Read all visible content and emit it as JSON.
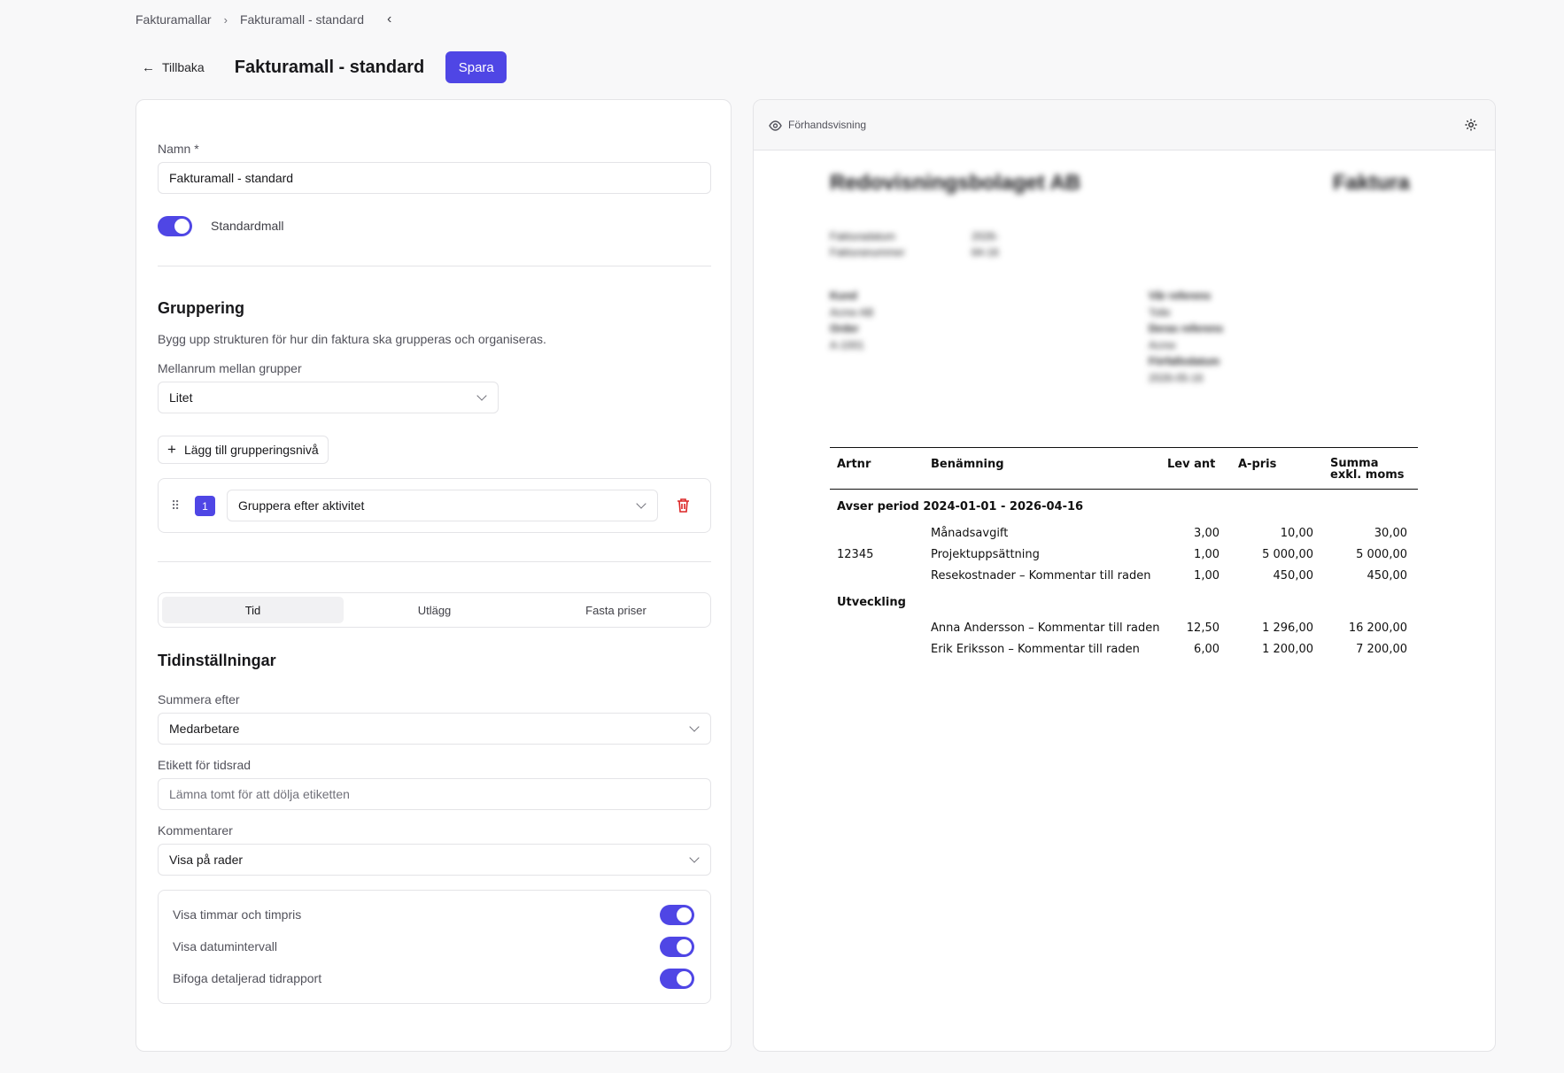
{
  "breadcrumb": {
    "items": [
      "Fakturamallar",
      "Fakturamall - standard"
    ],
    "separator": "›",
    "collapse_icon": "‹"
  },
  "header": {
    "back_label": "Tillbaka",
    "title": "Fakturamall - standard",
    "save_label": "Spara"
  },
  "form": {
    "name_label": "Namn *",
    "name_value": "Fakturamall - standard",
    "default_label": "Standardmall",
    "default_on": true,
    "grouping": {
      "title": "Gruppering",
      "description": "Bygg upp strukturen för hur din faktura ska grupperas och organiseras.",
      "spacing_label": "Mellanrum mellan grupper",
      "spacing_value": "Litet",
      "add_label": "Lägg till grupperingsnivå",
      "levels": [
        {
          "index": "1",
          "value": "Gruppera efter aktivitet"
        }
      ]
    },
    "tabs": [
      "Tid",
      "Utlägg",
      "Fasta priser"
    ],
    "active_tab": "Tid",
    "time": {
      "title": "Tidinställningar",
      "sum_label": "Summera efter",
      "sum_value": "Medarbetare",
      "row_label_label": "Etikett för tidsrad",
      "row_label_placeholder": "Lämna tomt för att dölja etiketten",
      "comments_label": "Kommentarer",
      "comments_value": "Visa på rader",
      "options": [
        {
          "label": "Visa timmar och timpris",
          "on": true
        },
        {
          "label": "Visa datumintervall",
          "on": true
        },
        {
          "label": "Bifoga detaljerad tidrapport",
          "on": true
        }
      ]
    }
  },
  "preview": {
    "label": "Förhandsvisning",
    "company": "Redovisningsbolaget AB",
    "doc_type": "Faktura",
    "meta": [
      {
        "k": "Fakturadatum",
        "v": "2026-04-16"
      },
      {
        "k": "Fakturanummer",
        "v": "-"
      }
    ],
    "customer_lines": [
      "Kund",
      "Acme AB",
      "Order",
      "A-1001"
    ],
    "reference_lines": [
      "Vår referens",
      "Tolle",
      "Deras referens",
      "Acme",
      "Förfallodatum",
      "2026-05-16"
    ],
    "table": {
      "headers": {
        "art": "Artnr",
        "name": "Benämning",
        "qty": "Lev ant",
        "price": "A-pris",
        "sum": "Summa exkl. moms"
      },
      "groups": [
        {
          "title": "Avser period 2024-01-01 - 2026-04-16",
          "rows": [
            {
              "art": "",
              "name": "Månadsavgift",
              "qty": "3,00",
              "price": "10,00",
              "sum": "30,00"
            },
            {
              "art": "12345",
              "name": "Projektuppsättning",
              "qty": "1,00",
              "price": "5 000,00",
              "sum": "5 000,00"
            },
            {
              "art": "",
              "name": "Resekostnader – Kommentar till raden",
              "qty": "1,00",
              "price": "450,00",
              "sum": "450,00"
            }
          ]
        },
        {
          "title": "Utveckling",
          "rows": [
            {
              "art": "",
              "name": "Anna Andersson – Kommentar till raden",
              "qty": "12,50",
              "price": "1 296,00",
              "sum": "16 200,00"
            },
            {
              "art": "",
              "name": "Erik Eriksson – Kommentar till raden",
              "qty": "6,00",
              "price": "1 200,00",
              "sum": "7 200,00"
            }
          ]
        }
      ]
    }
  }
}
